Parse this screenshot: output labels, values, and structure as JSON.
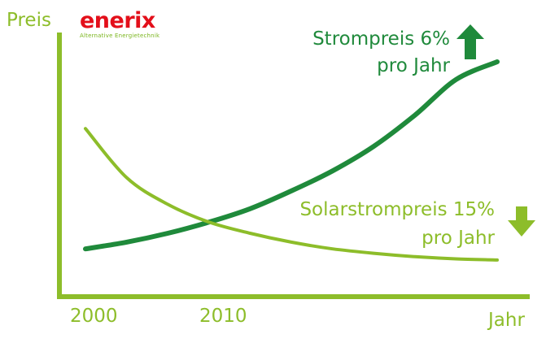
{
  "logo": {
    "name": "enerix",
    "tagline": "Alternative Energietechnik"
  },
  "colors": {
    "strompreis": "#1f8a3b",
    "solarstrompreis": "#8dbd2a",
    "axis": "#8dbd2a"
  },
  "icons": {
    "up": "arrow-up-icon",
    "down": "arrow-down-icon"
  },
  "chart_data": {
    "type": "line",
    "title": "",
    "ylabel": "Preis",
    "xlabel": "Jahr",
    "x_ticks": [
      "2000",
      "2010"
    ],
    "grid": false,
    "legend": "none",
    "series": [
      {
        "name": "Strompreis 6% pro Jahr",
        "label_lines": [
          "Strompreis 6%",
          "pro Jahr"
        ],
        "x": [
          0,
          0.1,
          0.2,
          0.3,
          0.4,
          0.5,
          0.6,
          0.7,
          0.8,
          0.9,
          1.0
        ],
        "y": [
          0.16,
          0.19,
          0.23,
          0.28,
          0.34,
          0.42,
          0.51,
          0.62,
          0.76,
          0.92,
          1.0
        ]
      },
      {
        "name": "Solarstrompreis 15% pro Jahr",
        "label_lines": [
          "Solarstrompreis 15%",
          "pro Jahr"
        ],
        "x": [
          0,
          0.1,
          0.2,
          0.3,
          0.4,
          0.5,
          0.6,
          0.7,
          0.8,
          0.9,
          1.0
        ],
        "y": [
          0.7,
          0.48,
          0.36,
          0.28,
          0.23,
          0.19,
          0.16,
          0.14,
          0.125,
          0.115,
          0.11
        ]
      }
    ]
  }
}
